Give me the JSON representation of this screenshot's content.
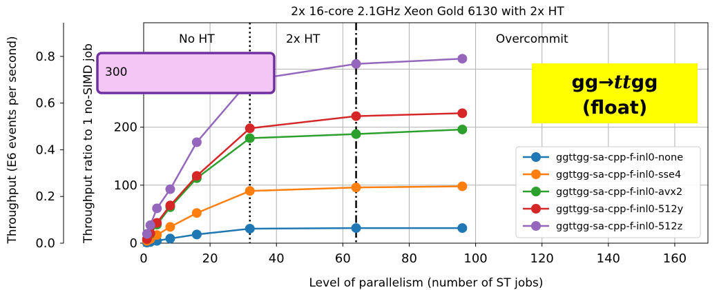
{
  "chart_data": {
    "type": "line",
    "title": "2x 16-core 2.1GHz Xeon Gold 6130 with 2x HT",
    "xlabel": "Level of parallelism (number of ST jobs)",
    "ylabel": "Throughput ratio to 1 no-SIMD job",
    "ylabel_secondary": "Throughput (E6 events per second)",
    "xlim": [
      0,
      170
    ],
    "ylim": [
      0,
      380
    ],
    "ylim_secondary": [
      0,
      0.9441
    ],
    "xticks": [
      0,
      20,
      40,
      60,
      80,
      100,
      120,
      140,
      160
    ],
    "yticks": [
      0,
      100,
      200,
      300
    ],
    "yticks_secondary": [
      0.0,
      0.2,
      0.4,
      0.6,
      0.8
    ],
    "grid": true,
    "legend_position": "right",
    "x": [
      1,
      2,
      4,
      8,
      16,
      32,
      64,
      96
    ],
    "series": [
      {
        "name": "ggttgg-sa-cpp-f-inl0-none",
        "color": "#1f77b4",
        "values": [
          1,
          2,
          4,
          8,
          15,
          25,
          26,
          26
        ]
      },
      {
        "name": "ggttgg-sa-cpp-f-inl0-sse4",
        "color": "#ff7f0e",
        "values": [
          4,
          7,
          14,
          28,
          52,
          90,
          96,
          98
        ]
      },
      {
        "name": "ggttgg-sa-cpp-f-inl0-avx2",
        "color": "#2ca02c",
        "values": [
          7,
          16,
          32,
          62,
          112,
          181,
          188,
          196
        ]
      },
      {
        "name": "ggttgg-sa-cpp-f-inl0-512y",
        "color": "#d62728",
        "values": [
          7,
          17,
          35,
          65,
          116,
          198,
          219,
          224
        ]
      },
      {
        "name": "ggttgg-sa-cpp-f-inl0-512z",
        "color": "#9467bd",
        "values": [
          16,
          31,
          60,
          93,
          174,
          281,
          309,
          318
        ]
      }
    ],
    "vlines": [
      {
        "x": 32,
        "style": "dotted"
      },
      {
        "x": 64,
        "style": "dashdot"
      }
    ],
    "regions": [
      {
        "label": "No HT",
        "x": 16
      },
      {
        "label": "2x HT",
        "x": 48
      },
      {
        "label": "Overcommit",
        "x": 117
      }
    ],
    "highlight": {
      "label": "300",
      "color": "#f3c6f5",
      "border": "#7030a0"
    },
    "annotation": {
      "line1": "gg→",
      "tt": "tt",
      "gg": "gg",
      "line2": "(float)",
      "background": "#ffff00"
    }
  }
}
